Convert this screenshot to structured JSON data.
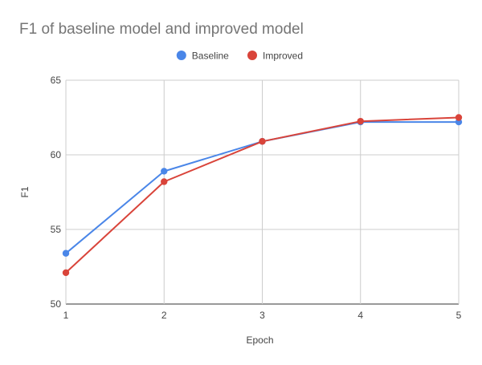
{
  "chart_data": {
    "type": "line",
    "title": "F1 of baseline model and improved model",
    "xlabel": "Epoch",
    "ylabel": "F1",
    "x": [
      1,
      2,
      3,
      4,
      5
    ],
    "xlim": [
      1,
      5
    ],
    "ylim": [
      50,
      65
    ],
    "xticks": [
      1,
      2,
      3,
      4,
      5
    ],
    "yticks": [
      50,
      55,
      60,
      65
    ],
    "grid": true,
    "legend_position": "top",
    "series": [
      {
        "name": "Baseline",
        "color": "#4a86e8",
        "values": [
          53.4,
          58.9,
          60.9,
          62.2,
          62.2
        ]
      },
      {
        "name": "Improved",
        "color": "#d9443a",
        "values": [
          52.1,
          58.2,
          60.9,
          62.25,
          62.5
        ]
      }
    ]
  }
}
